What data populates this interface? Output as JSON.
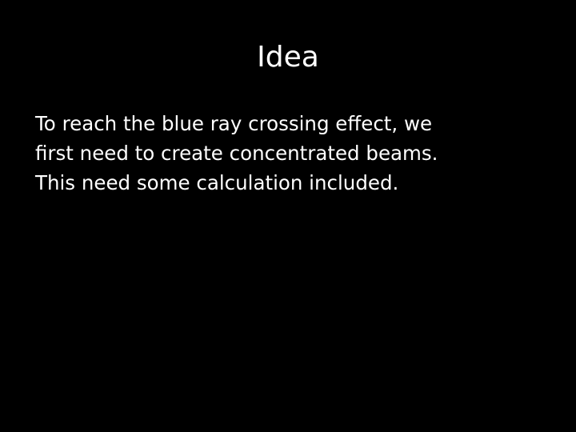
{
  "slide": {
    "title": "Idea",
    "body_lines": [
      "To reach the blue ray crossing effect, we",
      "first need to create concentrated beams.",
      "This need some calculation included."
    ]
  },
  "colors": {
    "background": "#000000",
    "text": "#ffffff"
  }
}
